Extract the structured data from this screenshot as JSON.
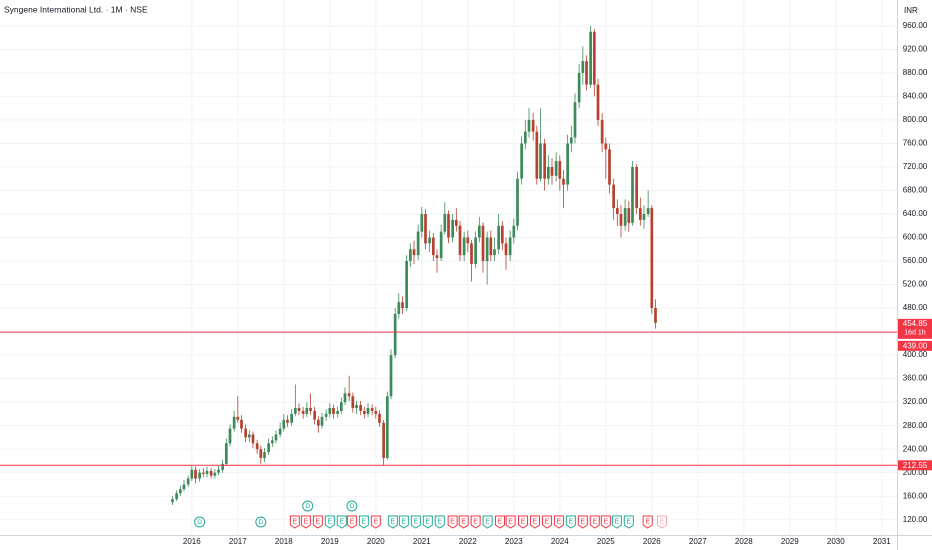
{
  "chart_data": {
    "type": "candlestick",
    "title": "Syngene International Ltd. · 1M · NSE",
    "currency": "INR",
    "up_color": "#3b8a5a",
    "down_color": "#b7412f",
    "xlim": [
      2011.83,
      2031.33
    ],
    "ylim": [
      94,
      1004
    ],
    "grid": true,
    "xticks": [
      2016,
      2017,
      2018,
      2019,
      2020,
      2021,
      2022,
      2023,
      2024,
      2025,
      2026,
      2027,
      2028,
      2029,
      2030,
      2031
    ],
    "yticks": [
      {
        "value": 120,
        "label": "120.00"
      },
      {
        "value": 160,
        "label": "160.00"
      },
      {
        "value": 200,
        "label": "200.00"
      },
      {
        "value": 240,
        "label": "240.00"
      },
      {
        "value": 280,
        "label": "280.00"
      },
      {
        "value": 320,
        "label": "320.00"
      },
      {
        "value": 360,
        "label": "360.00"
      },
      {
        "value": 400,
        "label": "400.00"
      },
      {
        "value": 480,
        "label": "480.00"
      },
      {
        "value": 520,
        "label": "520.00"
      },
      {
        "value": 560,
        "label": "560.00"
      },
      {
        "value": 600,
        "label": "600.00"
      },
      {
        "value": 640,
        "label": "640.00"
      },
      {
        "value": 680,
        "label": "680.00"
      },
      {
        "value": 720,
        "label": "720.00"
      },
      {
        "value": 760,
        "label": "760.00"
      },
      {
        "value": 800,
        "label": "800.00"
      },
      {
        "value": 840,
        "label": "840.00"
      },
      {
        "value": 880,
        "label": "880.00"
      },
      {
        "value": 920,
        "label": "920.00"
      },
      {
        "value": 960,
        "label": "960.00"
      }
    ],
    "x": [
      2015.58,
      2015.67,
      2015.75,
      2015.83,
      2015.92,
      2016.0,
      2016.08,
      2016.17,
      2016.25,
      2016.33,
      2016.42,
      2016.5,
      2016.58,
      2016.67,
      2016.75,
      2016.83,
      2016.92,
      2017.0,
      2017.08,
      2017.17,
      2017.25,
      2017.33,
      2017.42,
      2017.5,
      2017.58,
      2017.67,
      2017.75,
      2017.83,
      2017.92,
      2018.0,
      2018.08,
      2018.17,
      2018.25,
      2018.33,
      2018.42,
      2018.5,
      2018.58,
      2018.67,
      2018.75,
      2018.83,
      2018.92,
      2019.0,
      2019.08,
      2019.17,
      2019.25,
      2019.33,
      2019.42,
      2019.5,
      2019.58,
      2019.67,
      2019.75,
      2019.83,
      2019.92,
      2020.0,
      2020.08,
      2020.17,
      2020.25,
      2020.33,
      2020.42,
      2020.5,
      2020.58,
      2020.67,
      2020.75,
      2020.83,
      2020.92,
      2021.0,
      2021.08,
      2021.17,
      2021.25,
      2021.33,
      2021.42,
      2021.5,
      2021.58,
      2021.67,
      2021.75,
      2021.83,
      2021.92,
      2022.0,
      2022.08,
      2022.17,
      2022.25,
      2022.33,
      2022.42,
      2022.5,
      2022.58,
      2022.67,
      2022.75,
      2022.83,
      2022.92,
      2023.0,
      2023.08,
      2023.17,
      2023.25,
      2023.33,
      2023.42,
      2023.5,
      2023.58,
      2023.67,
      2023.75,
      2023.83,
      2023.92,
      2024.0,
      2024.08,
      2024.17,
      2024.25,
      2024.33,
      2024.42,
      2024.5,
      2024.58,
      2024.67,
      2024.75,
      2024.83,
      2024.92,
      2025.0,
      2025.08,
      2025.17,
      2025.25,
      2025.33,
      2025.42,
      2025.5,
      2025.58,
      2025.67,
      2025.75,
      2025.83,
      2025.92,
      2026.0,
      2026.08
    ],
    "open": [
      150,
      155,
      165,
      172,
      180,
      190,
      205,
      190,
      200,
      198,
      203,
      195,
      200,
      205,
      215,
      250,
      275,
      295,
      290,
      275,
      260,
      265,
      250,
      240,
      225,
      235,
      250,
      255,
      265,
      275,
      290,
      285,
      300,
      310,
      305,
      300,
      310,
      305,
      290,
      280,
      295,
      300,
      310,
      300,
      305,
      320,
      335,
      330,
      310,
      315,
      305,
      300,
      310,
      305,
      300,
      285,
      225,
      330,
      400,
      470,
      490,
      480,
      560,
      580,
      570,
      610,
      640,
      590,
      600,
      570,
      565,
      610,
      640,
      600,
      630,
      620,
      570,
      600,
      590,
      555,
      600,
      620,
      560,
      600,
      570,
      580,
      620,
      590,
      570,
      600,
      620,
      700,
      760,
      780,
      800,
      780,
      700,
      760,
      700,
      720,
      705,
      730,
      700,
      690,
      760,
      770,
      830,
      880,
      900,
      860,
      950,
      860,
      800,
      760,
      750,
      690,
      650,
      640,
      620,
      650,
      625,
      720,
      650,
      630,
      640,
      650,
      480
    ],
    "high": [
      160,
      170,
      178,
      188,
      195,
      212,
      210,
      206,
      208,
      210,
      208,
      206,
      212,
      222,
      258,
      282,
      305,
      330,
      298,
      282,
      272,
      270,
      256,
      246,
      242,
      258,
      262,
      272,
      285,
      300,
      298,
      308,
      350,
      318,
      312,
      320,
      335,
      312,
      296,
      302,
      308,
      318,
      316,
      312,
      328,
      345,
      365,
      336,
      322,
      322,
      312,
      318,
      316,
      312,
      306,
      290,
      338,
      410,
      480,
      505,
      500,
      570,
      590,
      595,
      622,
      652,
      648,
      612,
      608,
      580,
      622,
      660,
      646,
      640,
      650,
      628,
      610,
      612,
      596,
      610,
      635,
      626,
      610,
      612,
      600,
      640,
      628,
      600,
      612,
      632,
      712,
      772,
      800,
      820,
      812,
      790,
      820,
      768,
      740,
      735,
      745,
      740,
      715,
      775,
      790,
      845,
      895,
      925,
      910,
      960,
      955,
      870,
      812,
      770,
      760,
      700,
      665,
      655,
      665,
      662,
      730,
      725,
      668,
      655,
      680,
      655,
      495
    ],
    "low": [
      145,
      152,
      160,
      168,
      176,
      186,
      182,
      185,
      192,
      192,
      190,
      190,
      196,
      200,
      212,
      245,
      270,
      285,
      268,
      252,
      252,
      242,
      232,
      215,
      218,
      230,
      244,
      250,
      260,
      270,
      278,
      280,
      296,
      298,
      292,
      295,
      298,
      282,
      268,
      275,
      288,
      294,
      292,
      294,
      300,
      315,
      322,
      302,
      300,
      298,
      292,
      295,
      298,
      292,
      278,
      212,
      222,
      325,
      395,
      462,
      470,
      475,
      550,
      555,
      562,
      600,
      580,
      575,
      560,
      540,
      560,
      605,
      590,
      592,
      610,
      560,
      560,
      575,
      525,
      548,
      592,
      540,
      520,
      560,
      560,
      572,
      578,
      545,
      560,
      590,
      612,
      690,
      750,
      770,
      765,
      690,
      695,
      680,
      690,
      690,
      695,
      680,
      650,
      680,
      745,
      760,
      820,
      860,
      850,
      855,
      840,
      790,
      745,
      700,
      675,
      630,
      620,
      600,
      612,
      610,
      620,
      640,
      620,
      615,
      635,
      470,
      445
    ],
    "close": [
      155,
      165,
      172,
      180,
      190,
      205,
      190,
      200,
      198,
      203,
      195,
      200,
      205,
      215,
      250,
      275,
      295,
      290,
      275,
      260,
      265,
      250,
      240,
      225,
      235,
      250,
      255,
      265,
      275,
      290,
      285,
      300,
      310,
      305,
      300,
      310,
      305,
      290,
      280,
      295,
      300,
      310,
      300,
      305,
      320,
      335,
      330,
      310,
      315,
      305,
      300,
      310,
      305,
      300,
      285,
      225,
      330,
      400,
      470,
      490,
      480,
      560,
      580,
      570,
      610,
      640,
      590,
      600,
      570,
      565,
      610,
      640,
      600,
      630,
      620,
      570,
      600,
      590,
      555,
      600,
      620,
      560,
      600,
      570,
      580,
      620,
      590,
      570,
      600,
      620,
      700,
      760,
      780,
      800,
      780,
      700,
      760,
      700,
      720,
      705,
      730,
      700,
      690,
      760,
      770,
      830,
      880,
      900,
      860,
      950,
      860,
      800,
      760,
      750,
      690,
      650,
      640,
      620,
      650,
      625,
      720,
      650,
      630,
      640,
      650,
      480,
      454.85
    ],
    "last_price": 454.85,
    "countdown": "16d 1h",
    "level_color": "#f23645",
    "levels": [
      {
        "value": 439,
        "label": "439.00"
      },
      212.55
    ],
    "events": [
      {
        "label": "D",
        "x": 2016.17,
        "shape": "circle",
        "color": "#22ab94"
      },
      {
        "label": "D",
        "x": 2017.5,
        "shape": "circle",
        "color": "#22ab94"
      },
      {
        "label": "D",
        "x": 2018.52,
        "shape": "circle",
        "color": "#22ab94"
      },
      {
        "label": "D",
        "x": 2019.48,
        "shape": "circle",
        "color": "#22ab94"
      },
      {
        "label": "E",
        "x": 2018.24,
        "shape": "flag",
        "color": "#f23645"
      },
      {
        "label": "E",
        "x": 2018.48,
        "shape": "flag",
        "color": "#f23645"
      },
      {
        "label": "E",
        "x": 2018.74,
        "shape": "flag",
        "color": "#f23645"
      },
      {
        "label": "E",
        "x": 2019.0,
        "shape": "flag",
        "color": "#22ab94"
      },
      {
        "label": "E",
        "x": 2019.26,
        "shape": "flag",
        "color": "#22ab94"
      },
      {
        "label": "E",
        "x": 2019.48,
        "shape": "flag",
        "color": "#f23645"
      },
      {
        "label": "E",
        "x": 2019.74,
        "shape": "flag",
        "color": "#22ab94"
      },
      {
        "label": "E",
        "x": 2020.0,
        "shape": "flag",
        "color": "#f23645"
      },
      {
        "label": "E",
        "x": 2020.37,
        "shape": "flag",
        "color": "#22ab94"
      },
      {
        "label": "E",
        "x": 2020.61,
        "shape": "flag",
        "color": "#22ab94"
      },
      {
        "label": "E",
        "x": 2020.87,
        "shape": "flag",
        "color": "#22ab94"
      },
      {
        "label": "E",
        "x": 2021.13,
        "shape": "flag",
        "color": "#22ab94"
      },
      {
        "label": "E",
        "x": 2021.39,
        "shape": "flag",
        "color": "#22ab94"
      },
      {
        "label": "E",
        "x": 2021.67,
        "shape": "flag",
        "color": "#f23645"
      },
      {
        "label": "E",
        "x": 2021.91,
        "shape": "flag",
        "color": "#f23645"
      },
      {
        "label": "E",
        "x": 2022.17,
        "shape": "flag",
        "color": "#f23645"
      },
      {
        "label": "E",
        "x": 2022.43,
        "shape": "flag",
        "color": "#22ab94"
      },
      {
        "label": "E",
        "x": 2022.7,
        "shape": "flag",
        "color": "#f23645"
      },
      {
        "label": "E",
        "x": 2022.93,
        "shape": "flag",
        "color": "#f23645"
      },
      {
        "label": "E",
        "x": 2023.2,
        "shape": "flag",
        "color": "#f23645"
      },
      {
        "label": "E",
        "x": 2023.46,
        "shape": "flag",
        "color": "#f23645"
      },
      {
        "label": "E",
        "x": 2023.72,
        "shape": "flag",
        "color": "#f23645"
      },
      {
        "label": "E",
        "x": 2023.98,
        "shape": "flag",
        "color": "#f23645"
      },
      {
        "label": "E",
        "x": 2024.24,
        "shape": "flag",
        "color": "#22ab94"
      },
      {
        "label": "E",
        "x": 2024.5,
        "shape": "flag",
        "color": "#f23645"
      },
      {
        "label": "E",
        "x": 2024.76,
        "shape": "flag",
        "color": "#f23645"
      },
      {
        "label": "E",
        "x": 2025.0,
        "shape": "flag",
        "color": "#f23645"
      },
      {
        "label": "E",
        "x": 2025.24,
        "shape": "flag",
        "color": "#22ab94"
      },
      {
        "label": "E",
        "x": 2025.5,
        "shape": "flag",
        "color": "#22ab94"
      },
      {
        "label": "E",
        "x": 2025.91,
        "shape": "flag",
        "color": "#f23645"
      },
      {
        "label": "E",
        "x": 2026.22,
        "shape": "flag",
        "color": "#f7a9b1"
      }
    ]
  }
}
